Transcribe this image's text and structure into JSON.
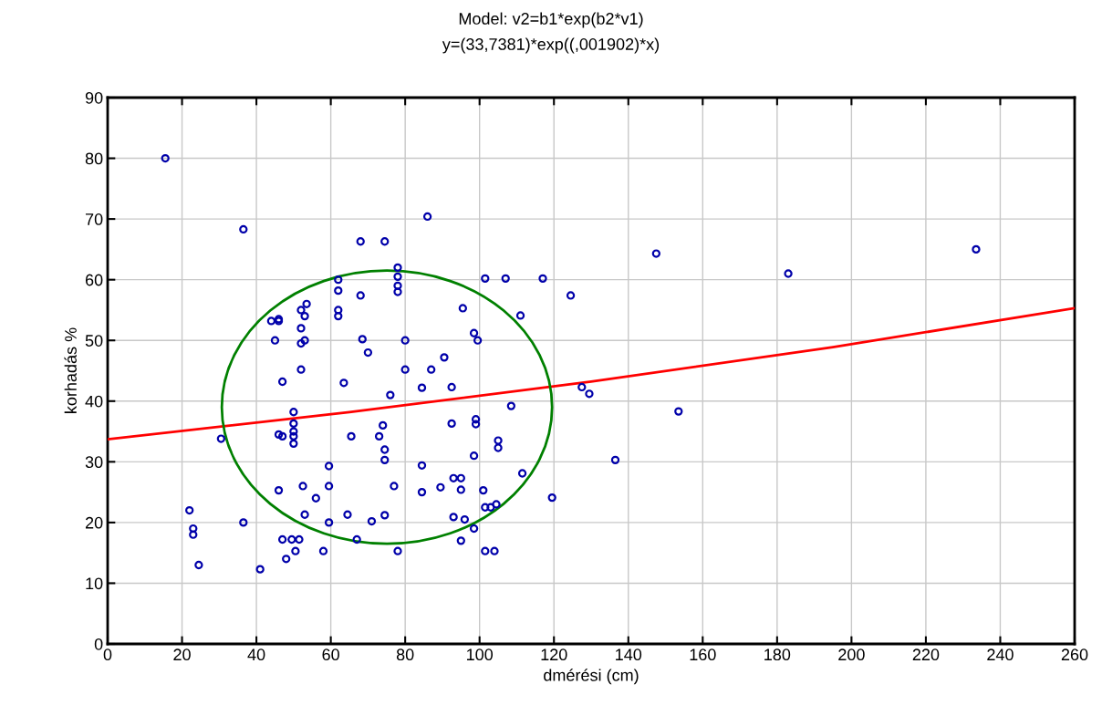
{
  "chart_data": {
    "type": "scatter",
    "title": "Model: v2=b1*exp(b2*v1)",
    "subtitle": "y=(33,7381)*exp((,001902)*x)",
    "xlabel": "dmérési (cm)",
    "ylabel": "korhadás %",
    "xlim": [
      0,
      260
    ],
    "xticks": [
      0,
      20,
      40,
      60,
      80,
      100,
      120,
      140,
      160,
      180,
      200,
      220,
      240,
      260
    ],
    "ylim": [
      0,
      90
    ],
    "yticks": [
      0,
      10,
      20,
      30,
      40,
      50,
      60,
      70,
      80,
      90
    ],
    "grid": true,
    "series": [
      {
        "color": "#0000aa",
        "marker": "circle",
        "x": [
          15.5,
          36.5,
          22,
          23,
          23,
          24.5,
          30.5,
          36.5,
          41,
          44,
          45,
          46,
          46,
          46,
          46,
          47,
          47,
          47,
          48,
          49.5,
          50,
          50,
          50,
          50,
          50,
          50.5,
          51.5,
          52,
          52,
          52,
          52,
          53,
          53,
          52.5,
          53,
          53.5,
          56,
          58,
          59.5,
          59.5,
          59.5,
          62,
          62,
          62,
          62,
          63.5,
          64.5,
          65.5,
          68,
          67,
          68,
          68.5,
          70,
          71,
          73,
          74.5,
          74,
          74.5,
          74.5,
          74.5,
          76,
          77,
          78,
          78,
          78,
          78,
          78,
          80,
          80,
          84.5,
          84.5,
          84.5,
          86,
          87,
          89.5,
          90.5,
          92.5,
          92.5,
          93,
          93,
          95,
          95,
          95,
          95.5,
          96,
          98.5,
          98.5,
          98.5,
          99,
          99,
          99.5,
          101,
          101.5,
          101.5,
          101.5,
          103,
          104,
          104.5,
          105,
          105,
          107,
          108.5,
          111,
          111.5,
          117,
          119.5,
          124.5,
          127.5,
          129.5,
          136.5,
          147.5,
          153.5,
          183,
          233.5
        ],
        "values": [
          80,
          68.3,
          22,
          19,
          18,
          13,
          33.8,
          20,
          12.3,
          53.2,
          50,
          53.5,
          53.2,
          34.5,
          25.3,
          43.2,
          34.2,
          17.2,
          14,
          17.2,
          38.2,
          36.3,
          35,
          34.2,
          33,
          15.3,
          17.2,
          55,
          52,
          49.5,
          45.2,
          54,
          50,
          26,
          21.3,
          56,
          24,
          15.3,
          29.3,
          26,
          20,
          60,
          58.2,
          55,
          54,
          43,
          21.3,
          34.2,
          66.3,
          17.2,
          57.4,
          50.2,
          48,
          20.2,
          34.2,
          66.3,
          36,
          32,
          30.3,
          21.2,
          41,
          26,
          62,
          60.5,
          59,
          58,
          15.3,
          50,
          45.2,
          42.2,
          29.4,
          25,
          70.4,
          45.2,
          25.8,
          47.2,
          42.3,
          36.3,
          27.3,
          20.9,
          27.3,
          25.4,
          17,
          55.3,
          20.5,
          51.2,
          31,
          19,
          36.2,
          37,
          50,
          25.3,
          60.2,
          22.5,
          15.3,
          22.5,
          15.3,
          23,
          32.3,
          33.5,
          60.2,
          39.2,
          54.1,
          28.1,
          60.2,
          24.1,
          57.4,
          42.3,
          41.2,
          30.3,
          64.3,
          38.3,
          61,
          65
        ]
      },
      {
        "type": "line",
        "color": "#ff0000",
        "marker": "none",
        "line_style": "solid",
        "x": [
          0,
          65,
          130,
          195,
          260
        ],
        "values": [
          33.7,
          38.2,
          43.2,
          48.9,
          55.3
        ]
      }
    ]
  }
}
